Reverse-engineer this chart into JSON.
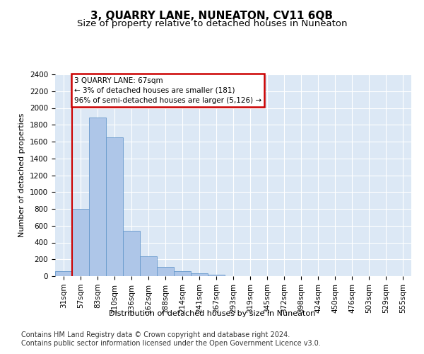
{
  "title": "3, QUARRY LANE, NUNEATON, CV11 6QB",
  "subtitle": "Size of property relative to detached houses in Nuneaton",
  "xlabel": "Distribution of detached houses by size in Nuneaton",
  "ylabel": "Number of detached properties",
  "categories": [
    "31sqm",
    "57sqm",
    "83sqm",
    "110sqm",
    "136sqm",
    "162sqm",
    "188sqm",
    "214sqm",
    "241sqm",
    "267sqm",
    "293sqm",
    "319sqm",
    "345sqm",
    "372sqm",
    "398sqm",
    "424sqm",
    "450sqm",
    "476sqm",
    "503sqm",
    "529sqm",
    "555sqm"
  ],
  "values": [
    60,
    800,
    1890,
    1650,
    535,
    240,
    110,
    60,
    35,
    20,
    0,
    0,
    0,
    0,
    0,
    0,
    0,
    0,
    0,
    0,
    0
  ],
  "bar_color": "#aec6e8",
  "bar_edge_color": "#6699cc",
  "highlight_line_color": "#cc0000",
  "annotation_text": "3 QUARRY LANE: 67sqm\n← 3% of detached houses are smaller (181)\n96% of semi-detached houses are larger (5,126) →",
  "annotation_box_facecolor": "#ffffff",
  "annotation_box_edgecolor": "#cc0000",
  "ylim_max": 2400,
  "yticks": [
    0,
    200,
    400,
    600,
    800,
    1000,
    1200,
    1400,
    1600,
    1800,
    2000,
    2200,
    2400
  ],
  "bg_color": "#dce8f5",
  "grid_color": "#ffffff",
  "footer_line1": "Contains HM Land Registry data © Crown copyright and database right 2024.",
  "footer_line2": "Contains public sector information licensed under the Open Government Licence v3.0.",
  "title_fontsize": 11,
  "subtitle_fontsize": 9.5,
  "label_fontsize": 8,
  "tick_fontsize": 7.5,
  "footer_fontsize": 7
}
